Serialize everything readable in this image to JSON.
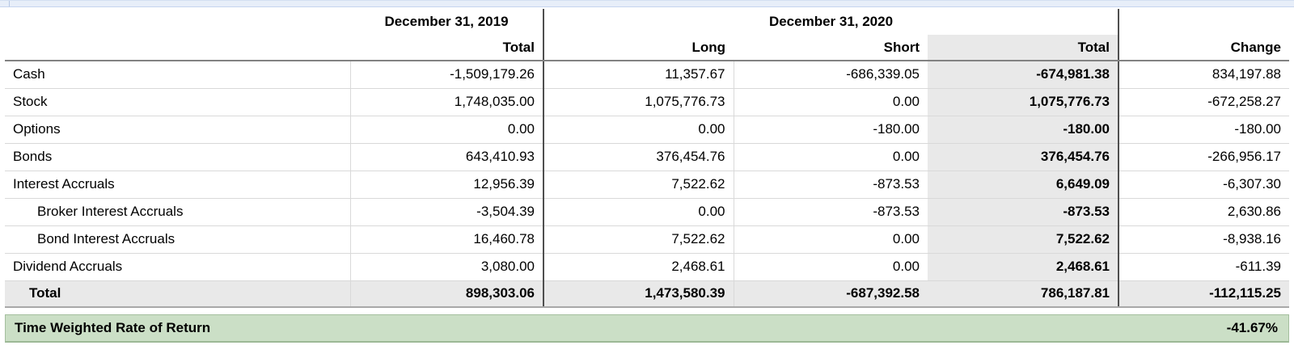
{
  "table": {
    "header": {
      "period1": "December 31, 2019",
      "period2": "December 31, 2020",
      "col_total_2019": "Total",
      "col_long": "Long",
      "col_short": "Short",
      "col_total_2020": "Total",
      "col_change": "Change"
    },
    "rows": [
      {
        "label": "Cash",
        "indent": 0,
        "total_2019": "-1,509,179.26",
        "long": "11,357.67",
        "short": "-686,339.05",
        "total_2020": "-674,981.38",
        "change": "834,197.88"
      },
      {
        "label": "Stock",
        "indent": 0,
        "total_2019": "1,748,035.00",
        "long": "1,075,776.73",
        "short": "0.00",
        "total_2020": "1,075,776.73",
        "change": "-672,258.27"
      },
      {
        "label": "Options",
        "indent": 0,
        "total_2019": "0.00",
        "long": "0.00",
        "short": "-180.00",
        "total_2020": "-180.00",
        "change": "-180.00"
      },
      {
        "label": "Bonds",
        "indent": 0,
        "total_2019": "643,410.93",
        "long": "376,454.76",
        "short": "0.00",
        "total_2020": "376,454.76",
        "change": "-266,956.17"
      },
      {
        "label": "Interest Accruals",
        "indent": 0,
        "total_2019": "12,956.39",
        "long": "7,522.62",
        "short": "-873.53",
        "total_2020": "6,649.09",
        "change": "-6,307.30"
      },
      {
        "label": "Broker Interest Accruals",
        "indent": 1,
        "total_2019": "-3,504.39",
        "long": "0.00",
        "short": "-873.53",
        "total_2020": "-873.53",
        "change": "2,630.86"
      },
      {
        "label": "Bond Interest Accruals",
        "indent": 1,
        "total_2019": "16,460.78",
        "long": "7,522.62",
        "short": "0.00",
        "total_2020": "7,522.62",
        "change": "-8,938.16"
      },
      {
        "label": "Dividend Accruals",
        "indent": 0,
        "total_2019": "3,080.00",
        "long": "2,468.61",
        "short": "0.00",
        "total_2020": "2,468.61",
        "change": "-611.39"
      }
    ],
    "total_row": {
      "label": "Total",
      "total_2019": "898,303.06",
      "long": "1,473,580.39",
      "short": "-687,392.58",
      "total_2020": "786,187.81",
      "change": "-112,115.25"
    }
  },
  "footer": {
    "twrr_label": "Time Weighted Rate of Return",
    "twrr_value": "-41.67%"
  },
  "colors": {
    "highlight_gray": "#e9e9e9",
    "green_fill": "#cbdfc6",
    "green_border": "#9cb996",
    "strip_blue": "#e7eef9",
    "strip_border": "#c5d4ee",
    "header_rule": "#828282",
    "row_rule": "#d9d9d9",
    "section_rule": "#4f4f4f"
  }
}
